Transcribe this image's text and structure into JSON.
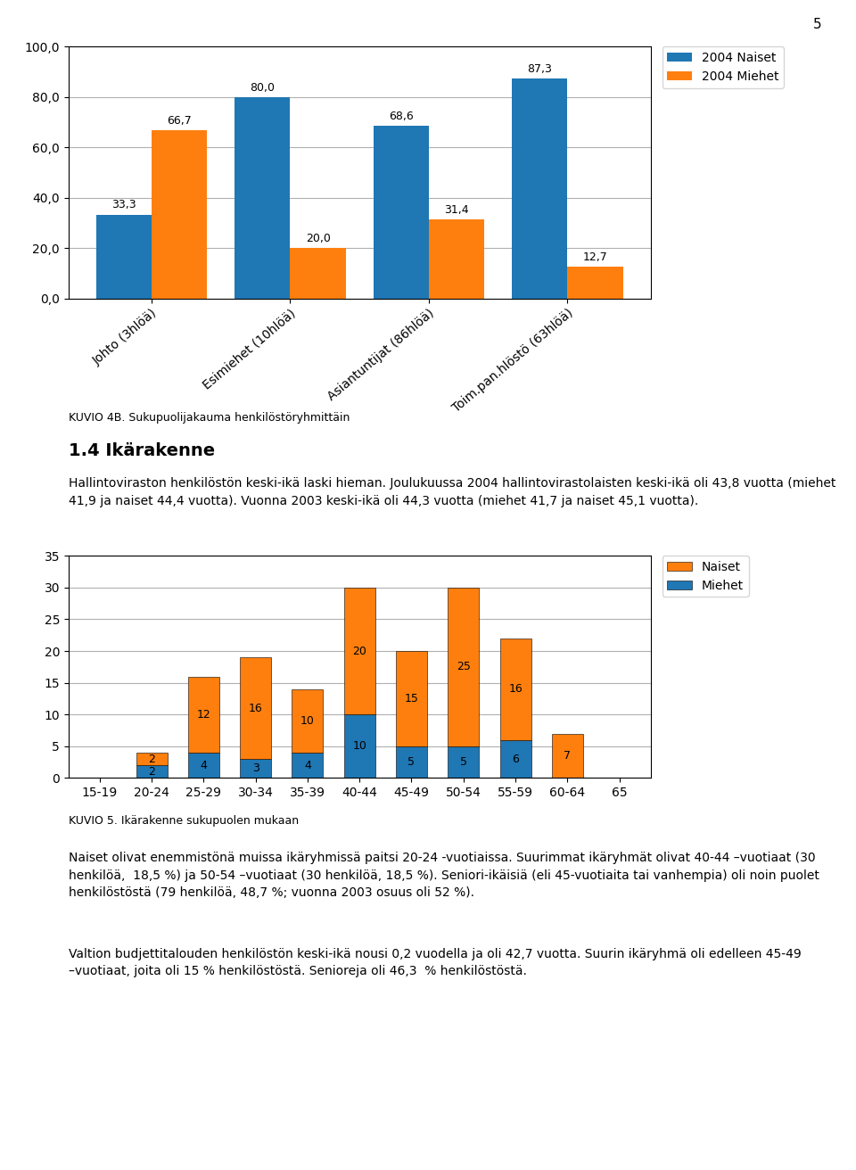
{
  "page_number": "5",
  "heading": "1.4 Ikärakenne",
  "paragraphs": [
    "Hallintoviraston henkilöstön keski-ikä laski hieman. Joulukuussa 2004 hallintovirastolaisten keski-ikä oli 43,8 vuotta (miehet 41,9 ja naiset 44,4 vuotta). Vuonna 2003 keski-ikä oli 44,3 vuotta (miehet 41,7 ja naiset 45,1 vuotta).",
    "Naiset olivat enemmistönä muissa ikäryhmissä paitsi 20-24 -vuotiaissa. Suurimmat ikäryhmät olivat 40-44 –vuotiaat (30 henkilöä,  18,5 %) ja 50-54 –vuotiaat (30 henkilöä, 18,5 %). Seniori-ikäisiä (eli 45-vuotiaita tai vanhempia) oli noin puolet henkilöstöstä (79 henkilöä, 48,7 %; vuonna 2003 osuus oli 52 %).",
    "Valtion budjettitalouden henkilöstön keski-ikä nousi 0,2 vuodella ja oli 42,7 vuotta. Suurin ikäryhmä oli edelleen 45-49 –vuotiaat, joita oli 15 % henkilöstöstä. Senioreja oli 46,3  % henkilöstöstä."
  ],
  "chart_data": [
    {
      "type": "bar",
      "caption": "KUVIO 4B. Sukupuolijakauma henkilöstöryhmittäin",
      "categories": [
        "Johto (3hlöä)",
        "Esimiehet (10hlöä)",
        "Asiantuntijat (86hlöä)",
        "Toim.pan.hlöstö (63hlöä)"
      ],
      "series": [
        {
          "name": "2004 Naiset",
          "values": [
            33.3,
            80.0,
            68.6,
            87.3
          ],
          "value_labels": [
            "33,3",
            "80,0",
            "68,6",
            "87,3"
          ]
        },
        {
          "name": "2004 Miehet",
          "values": [
            66.7,
            20.0,
            31.4,
            12.7
          ],
          "value_labels": [
            "66,7",
            "20,0",
            "31,4",
            "12,7"
          ]
        }
      ],
      "ylim": [
        0,
        100
      ],
      "yticks": [
        {
          "value": 0.0,
          "label": "0,0"
        },
        {
          "value": 20.0,
          "label": "20,0"
        },
        {
          "value": 40.0,
          "label": "40,0"
        },
        {
          "value": 60.0,
          "label": "60,0"
        },
        {
          "value": 80.0,
          "label": "80,0"
        },
        {
          "value": 100.0,
          "label": "100,0"
        }
      ],
      "grid": true,
      "legend": "upper right",
      "data_labels": true
    },
    {
      "type": "bar",
      "caption": "KUVIO 5. Ikärakenne sukupuolen mukaan",
      "categories": [
        "15-19",
        "20-24",
        "25-29",
        "30-34",
        "35-39",
        "40-44",
        "45-49",
        "50-54",
        "55-59",
        "60-64",
        "65"
      ],
      "series": [
        {
          "name": "Miehet",
          "values": [
            0,
            2,
            4,
            3,
            4,
            10,
            5,
            5,
            6,
            0,
            0
          ]
        },
        {
          "name": "Naiset",
          "values": [
            0,
            2,
            12,
            16,
            10,
            20,
            15,
            25,
            16,
            7,
            0
          ]
        }
      ],
      "stacked": true,
      "ylim": [
        0,
        35
      ],
      "yticks": [
        0,
        5,
        10,
        15,
        20,
        25,
        30,
        35
      ],
      "grid": true,
      "legend": "upper right",
      "data_labels": true
    }
  ]
}
